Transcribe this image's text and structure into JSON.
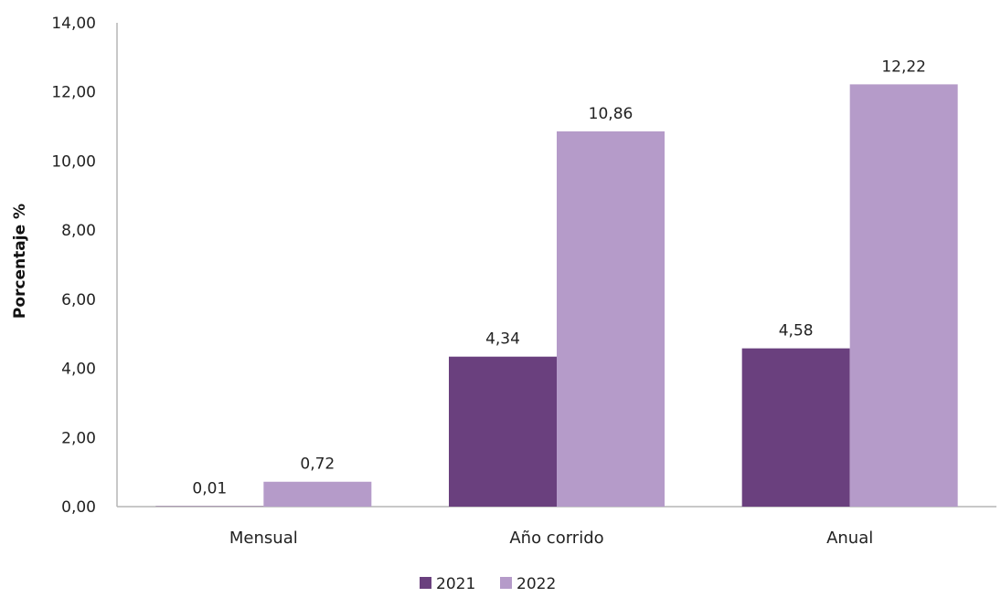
{
  "chart_data": {
    "type": "bar",
    "title": "",
    "xlabel": "",
    "ylabel": "Porcentaje %",
    "ylim": [
      0,
      14
    ],
    "ytick_step": 2,
    "ytick_labels": [
      "0,00",
      "2,00",
      "4,00",
      "6,00",
      "8,00",
      "10,00",
      "12,00",
      "14,00"
    ],
    "categories": [
      "Mensual",
      "Año corrido",
      "Anual"
    ],
    "series": [
      {
        "name": "2021",
        "color": "#6a407e",
        "values": [
          0.01,
          4.34,
          4.58
        ],
        "labels": [
          "0,01",
          "4,34",
          "4,58"
        ]
      },
      {
        "name": "2022",
        "color": "#b59bc9",
        "values": [
          0.72,
          10.86,
          12.22
        ],
        "labels": [
          "0,72",
          "10,86",
          "12,22"
        ]
      }
    ],
    "legend_position": "bottom",
    "grid": false
  }
}
